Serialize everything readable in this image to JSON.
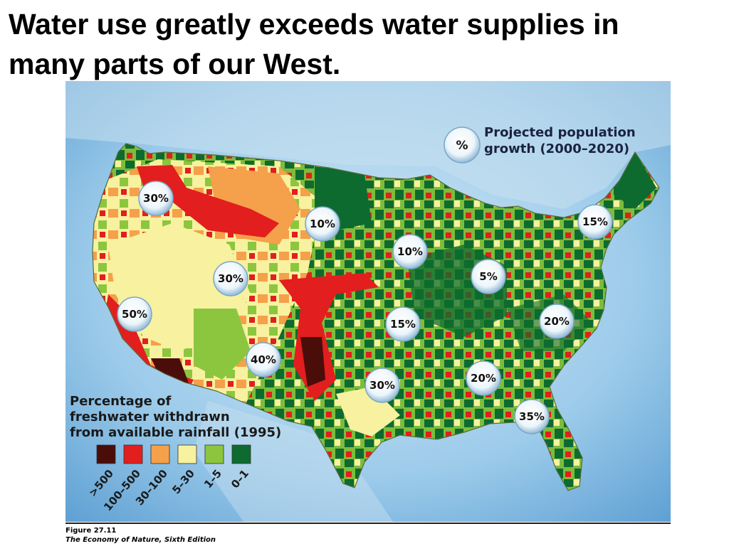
{
  "slide": {
    "title_line1": "Water use greatly exceeds water supplies in",
    "title_line2": "many parts of our West."
  },
  "map": {
    "growth_key": {
      "symbol": "%",
      "line1": "Projected population",
      "line2": "growth (2000–2020)"
    },
    "growth_bubbles": [
      {
        "label": "30%",
        "region": "pacific-northwest"
      },
      {
        "label": "10%",
        "region": "northern-plains"
      },
      {
        "label": "10%",
        "region": "upper-midwest"
      },
      {
        "label": "15%",
        "region": "new-england"
      },
      {
        "label": "5%",
        "region": "great-lakes"
      },
      {
        "label": "30%",
        "region": "great-basin"
      },
      {
        "label": "50%",
        "region": "california"
      },
      {
        "label": "20%",
        "region": "mid-atlantic"
      },
      {
        "label": "15%",
        "region": "central-plains"
      },
      {
        "label": "40%",
        "region": "southwest"
      },
      {
        "label": "20%",
        "region": "southeast"
      },
      {
        "label": "30%",
        "region": "south-central"
      },
      {
        "label": "35%",
        "region": "florida"
      }
    ],
    "legend": {
      "line1": "Percentage of",
      "line2": "freshwater withdrawn",
      "line3": "from available rainfall (1995)",
      "bins": [
        {
          "label": ">500",
          "color": "#4a0d0a"
        },
        {
          "label": "100–500",
          "color": "#e21e1e"
        },
        {
          "label": "30–100",
          "color": "#f5a04a"
        },
        {
          "label": "5–30",
          "color": "#f7f1a0"
        },
        {
          "label": "1–5",
          "color": "#8cc63f"
        },
        {
          "label": "0–1",
          "color": "#0d6b2f"
        }
      ]
    }
  },
  "credit": {
    "figure": "Figure 27.11",
    "book": "The Economy of Nature, Sixth Edition"
  }
}
